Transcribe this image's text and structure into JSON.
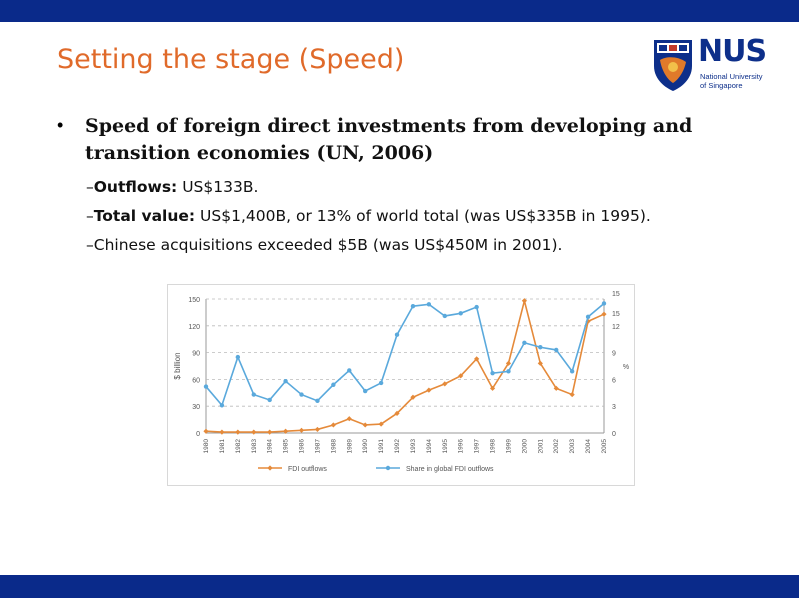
{
  "slide": {
    "title": "Setting the stage (Speed)",
    "logo": {
      "name": "NUS",
      "subtitle_line1": "National University",
      "subtitle_line2": "of Singapore"
    },
    "bullet": "Speed of foreign direct investments from developing and transition economies (UN, 2006)",
    "sub_items": [
      {
        "dash": "–",
        "label": "Outflows:",
        "text": " US$133B."
      },
      {
        "dash": "–",
        "label": "Total value:",
        "text": " US$1,400B, or 13% of world total (was US$335B in 1995)."
      },
      {
        "dash": "–",
        "label": "",
        "text": "Chinese acquisitions exceeded $5B (was US$450M in 2001)."
      }
    ],
    "colors": {
      "bars": "#0a2a8a",
      "title": "#e06a2a",
      "orange_series": "#e58a3a",
      "blue_series": "#5aa9dc"
    }
  },
  "chart_data": {
    "type": "line",
    "x": [
      "1980",
      "1981",
      "1982",
      "1983",
      "1984",
      "1985",
      "1986",
      "1987",
      "1988",
      "1989",
      "1990",
      "1991",
      "1992",
      "1993",
      "1994",
      "1995",
      "1996",
      "1997",
      "1998",
      "1999",
      "2000",
      "2001",
      "2002",
      "2003",
      "2004",
      "2005"
    ],
    "series": [
      {
        "name": "FDI outflows",
        "axis": "left",
        "color": "#e58a3a",
        "values": [
          2,
          1,
          1,
          1,
          1,
          2,
          3,
          4,
          9,
          16,
          9,
          10,
          22,
          40,
          48,
          55,
          64,
          83,
          50,
          78,
          148,
          78,
          50,
          43,
          125,
          133
        ]
      },
      {
        "name": "Share in global FDI outflows",
        "axis": "right",
        "color": "#5aa9dc",
        "values": [
          5.2,
          3.1,
          8.5,
          4.3,
          3.7,
          5.8,
          4.3,
          3.6,
          5.4,
          7.0,
          4.7,
          5.6,
          11.0,
          14.2,
          14.4,
          13.1,
          13.4,
          14.1,
          6.7,
          6.9,
          10.1,
          9.6,
          9.3,
          6.9,
          13.0,
          14.5
        ]
      }
    ],
    "left_axis": {
      "ylabel": "$ billion",
      "ylim": [
        0,
        150
      ],
      "ticks": [
        "0",
        "30",
        "60",
        "90",
        "120",
        "150"
      ]
    },
    "right_axis": {
      "ylabel": "%",
      "ylim": [
        0,
        15
      ],
      "ticks": [
        "0",
        "3",
        "6",
        "9",
        "12",
        "15",
        "15"
      ]
    },
    "legend": [
      "FDI outflows",
      "Share in global FDI outflows"
    ],
    "legend_position": "bottom",
    "grid": "dashed"
  }
}
